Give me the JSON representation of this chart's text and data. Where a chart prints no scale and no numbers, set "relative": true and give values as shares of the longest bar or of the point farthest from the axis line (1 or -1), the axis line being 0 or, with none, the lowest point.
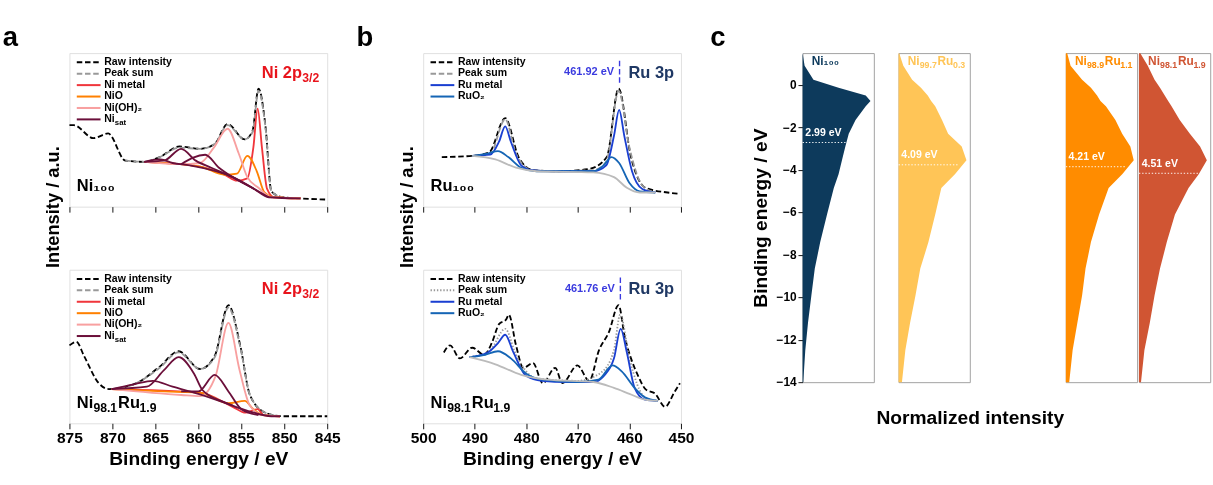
{
  "chart_data": [
    {
      "type": "line",
      "title": "a",
      "ylabel": "Intensity / a.u.",
      "annotations": [
        "Ni 2p$_{3/2}$",
        "Ni₁₀₀"
      ],
      "relative": true,
      "xlim": [
        875,
        845
      ],
      "xticks": [
        875,
        870,
        865,
        860,
        855,
        850,
        845
      ],
      "tick_labels": false,
      "legend": "top left",
      "series": [
        {
          "name": "Raw intensity",
          "color": "#000000",
          "line_style": "dashed",
          "x": [
            875,
            874.5,
            872.2,
            870.5,
            868.5,
            866.3,
            864.5,
            862.2,
            859.8,
            858.1,
            856.6,
            854.6,
            853.7,
            853.0,
            852.2,
            851.5,
            850.2,
            848.1,
            845
          ],
          "values": [
            0.69,
            0.69,
            0.58,
            0.62,
            0.39,
            0.38,
            0.42,
            0.51,
            0.49,
            0.53,
            0.7,
            0.57,
            0.64,
            1.0,
            0.69,
            0.13,
            0.08,
            0.07,
            0.06
          ]
        },
        {
          "name": "Peak sum",
          "color": "#999999",
          "line_style": "dashed",
          "x": [
            868.5,
            866.3,
            864.5,
            862.2,
            859.8,
            858.1,
            856.6,
            854.6,
            853.7,
            853.0,
            852.2,
            851.5,
            850.2,
            848.1
          ],
          "values": [
            0.39,
            0.38,
            0.42,
            0.5,
            0.49,
            0.53,
            0.69,
            0.57,
            0.63,
            0.98,
            0.68,
            0.13,
            0.08,
            0.07
          ]
        },
        {
          "name": "Ni metal",
          "color": "#f0363c",
          "x": [
            866.3,
            859.8,
            856.9,
            855.5,
            854.3,
            853.6,
            853.1,
            852.6,
            852.0,
            851.2,
            848.1
          ],
          "values": [
            0.38,
            0.34,
            0.27,
            0.22,
            0.24,
            0.5,
            0.83,
            0.5,
            0.15,
            0.08,
            0.07
          ]
        },
        {
          "name": "NiO",
          "color": "#ff8000",
          "x": [
            866.3,
            859.8,
            856.9,
            855.5,
            854.3,
            853.2,
            852.3,
            851.2,
            848.1
          ],
          "values": [
            0.38,
            0.34,
            0.27,
            0.28,
            0.43,
            0.3,
            0.12,
            0.08,
            0.07
          ]
        },
        {
          "name": "Ni(OH)₂",
          "color": "#f8a0a0",
          "x": [
            866.3,
            862,
            859.8,
            858.2,
            856.6,
            855.3,
            854.3,
            853.0,
            851.5,
            848.1
          ],
          "values": [
            0.38,
            0.36,
            0.37,
            0.5,
            0.66,
            0.45,
            0.25,
            0.16,
            0.08,
            0.07
          ]
        },
        {
          "name": "Ni$_{sat}$",
          "color": "#6b0f3a",
          "x": [
            866.3,
            864,
            862,
            860.3,
            858.5,
            856,
            853.5,
            851.8,
            848.1
          ],
          "values": [
            0.38,
            0.39,
            0.49,
            0.39,
            0.33,
            0.25,
            0.15,
            0.08,
            0.07
          ]
        },
        {
          "color": "#6b0f3a",
          "x": [
            862,
            859.2,
            857.6,
            856,
            853.5,
            851.8
          ],
          "values": [
            0.36,
            0.44,
            0.33,
            0.25,
            0.15,
            0.08
          ]
        },
        {
          "color": "#6b0f3a",
          "x": [
            866.3,
            864.4,
            863,
            861,
            856,
            853.5
          ],
          "values": [
            0.38,
            0.4,
            0.37,
            0.35,
            0.25,
            0.15
          ]
        }
      ]
    },
    {
      "type": "line",
      "xlabel": "Binding energy / eV",
      "annotations": [
        "Ni 2p$_{3/2}$",
        "Ni$_{98.1}$Ru$_{1.9}$"
      ],
      "relative": true,
      "xlim": [
        875,
        845
      ],
      "xticks": [
        875,
        870,
        865,
        860,
        855,
        850,
        845
      ],
      "tick_labels": "x",
      "legend": "top left",
      "series": [
        {
          "name": "Raw intensity",
          "color": "#000000",
          "line_style": "dashed",
          "x": [
            875,
            874.2,
            873.3,
            871.6,
            870.4,
            867.2,
            864.5,
            862.3,
            859.8,
            858.1,
            856.5,
            855.1,
            854.0,
            852.2,
            850.2,
            845
          ],
          "values": [
            0.66,
            0.69,
            0.57,
            0.34,
            0.29,
            0.34,
            0.48,
            0.61,
            0.46,
            0.57,
            1.0,
            0.65,
            0.24,
            0.09,
            0.06,
            0.06
          ]
        },
        {
          "name": "Peak sum",
          "color": "#999999",
          "line_style": "dashed",
          "x": [
            870.1,
            867.2,
            864.5,
            862.3,
            859.8,
            858.1,
            856.5,
            855.1,
            854.0,
            852.2,
            850.5
          ],
          "values": [
            0.29,
            0.34,
            0.47,
            0.6,
            0.46,
            0.56,
            0.98,
            0.64,
            0.24,
            0.09,
            0.06
          ]
        },
        {
          "name": "Ni metal",
          "color": "#f0363c",
          "x": [
            870.1,
            859.8,
            856,
            854.5,
            853.1,
            852.4,
            850.5
          ],
          "values": [
            0.29,
            0.26,
            0.14,
            0.09,
            0.12,
            0.07,
            0.06
          ]
        },
        {
          "name": "NiO",
          "color": "#ff8000",
          "x": [
            870.1,
            864,
            859.8,
            856.5,
            854.6,
            853.6,
            852.5,
            850.5
          ],
          "values": [
            0.29,
            0.27,
            0.26,
            0.17,
            0.19,
            0.12,
            0.07,
            0.06
          ]
        },
        {
          "name": "Ni(OH)₂",
          "color": "#f8a0a0",
          "x": [
            870.1,
            862,
            859.8,
            858,
            856.5,
            855.2,
            854,
            852.5,
            850.5
          ],
          "values": [
            0.29,
            0.24,
            0.23,
            0.4,
            0.85,
            0.45,
            0.15,
            0.07,
            0.06
          ]
        },
        {
          "name": "Ni$_{sat}$",
          "color": "#6b0f3a",
          "x": [
            870.1,
            866,
            864,
            862.3,
            860.5,
            859.5,
            857,
            854,
            851.5,
            850.5
          ],
          "values": [
            0.29,
            0.31,
            0.45,
            0.56,
            0.42,
            0.28,
            0.18,
            0.1,
            0.06,
            0.06
          ]
        },
        {
          "color": "#6b0f3a",
          "x": [
            862,
            860,
            858.1,
            856.5,
            855,
            853
          ],
          "values": [
            0.27,
            0.27,
            0.41,
            0.27,
            0.12,
            0.07
          ]
        },
        {
          "color": "#6b0f3a",
          "x": [
            870.1,
            867.5,
            865.3,
            863,
            860,
            856
          ],
          "values": [
            0.29,
            0.33,
            0.36,
            0.31,
            0.25,
            0.15
          ]
        }
      ]
    },
    {
      "type": "line",
      "title": "b",
      "ylabel": "Intensity / a.u.",
      "annotations": [
        "Ru 3p",
        "Ru₁₀₀"
      ],
      "relative": true,
      "xlim": [
        500,
        450
      ],
      "xticks": [
        500,
        490,
        480,
        470,
        460,
        450
      ],
      "tick_labels": false,
      "legend": "top left",
      "ref_lines": [
        {
          "axis": "x",
          "value": 461.92,
          "label": "461.92 eV",
          "color": "#3b3bdf",
          "line_style": "dashed"
        }
      ],
      "series": [
        {
          "name": "Raw intensity",
          "color": "#000000",
          "line_style": "dashed",
          "x": [
            496.4,
            490.5,
            487.2,
            484.1,
            481.5,
            478.7,
            473.9,
            467.8,
            464.4,
            462.1,
            459.7,
            456.9,
            452.6,
            450.5
          ],
          "values": [
            0.42,
            0.43,
            0.46,
            0.75,
            0.42,
            0.31,
            0.3,
            0.32,
            0.42,
            1.0,
            0.42,
            0.16,
            0.12,
            0.11
          ]
        },
        {
          "name": "Peak sum",
          "color": "#999999",
          "line_style": "dashed",
          "x": [
            490.5,
            487,
            484.1,
            482,
            479,
            474,
            467,
            464.5,
            462.1,
            460,
            457.5,
            455
          ],
          "values": [
            0.43,
            0.45,
            0.74,
            0.45,
            0.31,
            0.3,
            0.31,
            0.38,
            0.98,
            0.5,
            0.18,
            0.12
          ]
        },
        {
          "name": "Ru metal",
          "color": "#1a3fd1",
          "x": [
            490.5,
            487,
            485.3,
            484.1,
            483,
            481,
            479,
            474,
            467,
            464.5,
            463,
            462,
            461,
            459.5,
            457.5,
            455
          ],
          "values": [
            0.43,
            0.44,
            0.55,
            0.68,
            0.55,
            0.35,
            0.31,
            0.3,
            0.3,
            0.35,
            0.6,
            0.82,
            0.6,
            0.3,
            0.15,
            0.12
          ]
        },
        {
          "name": "RuO₂",
          "color": "#1565b5",
          "x": [
            490.5,
            487.5,
            485.5,
            483.5,
            481,
            478,
            467,
            465,
            463.5,
            462,
            460,
            458,
            455
          ],
          "values": [
            0.43,
            0.45,
            0.47,
            0.42,
            0.33,
            0.3,
            0.3,
            0.35,
            0.42,
            0.37,
            0.2,
            0.13,
            0.12
          ]
        },
        {
          "color": "#bbbbbb",
          "x": [
            490.5,
            486,
            482,
            478,
            467,
            463,
            460.5,
            458,
            455
          ],
          "values": [
            0.43,
            0.4,
            0.33,
            0.3,
            0.29,
            0.25,
            0.16,
            0.12,
            0.12
          ]
        }
      ]
    },
    {
      "type": "line",
      "xlabel": "Binding energy / eV",
      "annotations": [
        "Ru 3p",
        "Ni$_{98.1}$Ru$_{1.9}$"
      ],
      "relative": true,
      "xlim": [
        500,
        450
      ],
      "xticks": [
        500,
        490,
        480,
        470,
        460,
        450
      ],
      "tick_labels": "x",
      "legend": "top left",
      "ref_lines": [
        {
          "axis": "x",
          "value": 461.76,
          "label": "461.76 eV",
          "color": "#3b3bdf",
          "line_style": "dashed"
        }
      ],
      "series": [
        {
          "name": "Raw intensity",
          "color": "#000000",
          "line_style": "dashed",
          "x": [
            496.0,
            494.8,
            492.9,
            490.5,
            488.2,
            486.7,
            485.3,
            483.9,
            483.4,
            482,
            480.6,
            478.7,
            476.8,
            474.4,
            473,
            470.1,
            467.8,
            465.9,
            464,
            462.1,
            460.9,
            459.7,
            458.3,
            456.9,
            455,
            453.1,
            451.2,
            450.2
          ],
          "values": [
            0.6,
            0.66,
            0.55,
            0.64,
            0.58,
            0.68,
            0.84,
            0.88,
            0.92,
            0.66,
            0.47,
            0.51,
            0.34,
            0.47,
            0.34,
            0.49,
            0.36,
            0.62,
            0.77,
            1.0,
            0.73,
            0.55,
            0.4,
            0.29,
            0.25,
            0.14,
            0.27,
            0.34
          ]
        },
        {
          "name": "Peak sum",
          "color": "#999999",
          "line_style": "dotted",
          "x": [
            491,
            487,
            484.1,
            482,
            478,
            470,
            465.5,
            463,
            461.8,
            460,
            457,
            454.5
          ],
          "values": [
            0.56,
            0.62,
            0.8,
            0.58,
            0.38,
            0.36,
            0.43,
            0.62,
            0.92,
            0.55,
            0.22,
            0.19
          ]
        },
        {
          "name": "Ru metal",
          "color": "#1a3fd1",
          "x": [
            491,
            487.5,
            485.5,
            484.1,
            482.5,
            480,
            477,
            472,
            467,
            465,
            463,
            461.7,
            460.5,
            459,
            457,
            454.5
          ],
          "values": [
            0.56,
            0.6,
            0.68,
            0.75,
            0.6,
            0.4,
            0.36,
            0.35,
            0.35,
            0.4,
            0.55,
            0.8,
            0.6,
            0.3,
            0.2,
            0.19
          ]
        },
        {
          "name": "RuO₂",
          "color": "#1565b5",
          "x": [
            491,
            488,
            485.5,
            483,
            480,
            477,
            470,
            466,
            463.3,
            461.5,
            459,
            457,
            454.5
          ],
          "values": [
            0.56,
            0.58,
            0.61,
            0.55,
            0.42,
            0.37,
            0.35,
            0.37,
            0.49,
            0.44,
            0.3,
            0.22,
            0.19
          ]
        },
        {
          "color": "#bbbbbb",
          "x": [
            491,
            486,
            481,
            476,
            467,
            463,
            460,
            457,
            454.5
          ],
          "values": [
            0.56,
            0.5,
            0.41,
            0.37,
            0.35,
            0.3,
            0.25,
            0.2,
            0.19
          ]
        }
      ]
    },
    {
      "type": "area",
      "orientation": "horizontal",
      "title": "c",
      "ylabel": "Binding energy / eV",
      "relative": true,
      "ylim": [
        -14,
        1.5
      ],
      "yticks": [
        0,
        -2,
        -4,
        -6,
        -8,
        -10,
        -12,
        -14
      ],
      "tick_labels": "y",
      "ref_lines": [
        {
          "axis": "y",
          "value": -2.71,
          "label": "2.99 eV",
          "color": "#ffffff",
          "line_style": "dotted"
        }
      ],
      "series": [
        {
          "name": "Ni₁₀₀",
          "color": "#0d3a5c",
          "x": [
            1.5,
            0.9,
            0.25,
            -0.13,
            -0.5,
            -0.75,
            -1,
            -1.65,
            -2.3,
            -2.9,
            -3.55,
            -4.2,
            -4.85,
            -6.1,
            -7.4,
            -8.65,
            -9.9,
            -11.2,
            -12.5,
            -14
          ],
          "values": [
            0,
            0.03,
            0.16,
            0.53,
            0.93,
            1.0,
            0.93,
            0.78,
            0.68,
            0.63,
            0.58,
            0.53,
            0.46,
            0.36,
            0.26,
            0.18,
            0.13,
            0.08,
            0.04,
            0.01
          ]
        }
      ]
    },
    {
      "type": "area",
      "orientation": "horizontal",
      "xlabel": "Normalized intensity",
      "relative": true,
      "ylim": [
        -14,
        1.5
      ],
      "yticks": [
        0,
        -2,
        -4,
        -6,
        -8,
        -10,
        -12,
        -14
      ],
      "tick_labels": false,
      "ref_lines": [
        {
          "axis": "y",
          "value": -3.76,
          "label": "4.09 eV",
          "color": "#ffffff",
          "line_style": "dotted"
        }
      ],
      "series": [
        {
          "name": "Ni$_{99.7}$Ru$_{0.3}$",
          "color": "#ffc557",
          "x": [
            1.5,
            0.9,
            0.25,
            -0.13,
            -0.5,
            -0.75,
            -1,
            -1.65,
            -2.3,
            -2.9,
            -3.55,
            -4.2,
            -4.85,
            -6.1,
            -7.4,
            -8.65,
            -9.9,
            -11.2,
            -12.5,
            -14
          ],
          "values": [
            0.01,
            0.07,
            0.2,
            0.33,
            0.43,
            0.48,
            0.54,
            0.64,
            0.73,
            0.93,
            1.0,
            0.83,
            0.63,
            0.54,
            0.44,
            0.32,
            0.25,
            0.17,
            0.1,
            0.05
          ]
        }
      ]
    },
    {
      "type": "area",
      "orientation": "horizontal",
      "relative": true,
      "ylim": [
        -14,
        1.5
      ],
      "yticks": [
        0,
        -2,
        -4,
        -6,
        -8,
        -10,
        -12,
        -14
      ],
      "tick_labels": false,
      "ref_lines": [
        {
          "axis": "y",
          "value": -3.85,
          "label": "4.21 eV",
          "color": "#ffffff",
          "line_style": "dotted"
        }
      ],
      "series": [
        {
          "name": "Ni$_{98.9}$Ru$_{1.1}$",
          "color": "#ff8c00",
          "x": [
            1.5,
            0.9,
            0.25,
            -0.13,
            -0.5,
            -0.75,
            -1,
            -1.65,
            -2.3,
            -2.9,
            -3.55,
            -4.2,
            -4.85,
            -6.1,
            -7.4,
            -8.65,
            -9.9,
            -11.2,
            -12.5,
            -14
          ],
          "values": [
            0.02,
            0.07,
            0.24,
            0.37,
            0.46,
            0.51,
            0.59,
            0.73,
            0.83,
            0.95,
            1.0,
            0.83,
            0.63,
            0.49,
            0.37,
            0.29,
            0.24,
            0.17,
            0.1,
            0.05
          ]
        }
      ]
    },
    {
      "type": "area",
      "orientation": "horizontal",
      "relative": true,
      "ylim": [
        -14,
        1.5
      ],
      "yticks": [
        0,
        -2,
        -4,
        -6,
        -8,
        -10,
        -12,
        -14
      ],
      "tick_labels": false,
      "ref_lines": [
        {
          "axis": "y",
          "value": -4.16,
          "label": "4.51 eV",
          "color": "#ffffff",
          "line_style": "dotted"
        }
      ],
      "series": [
        {
          "name": "Ni$_{98.1}$Ru$_{1.9}$",
          "color": "#d05533",
          "x": [
            1.5,
            0.9,
            0.25,
            -0.13,
            -0.5,
            -0.75,
            -1,
            -1.65,
            -2.3,
            -2.9,
            -3.55,
            -4.2,
            -4.85,
            -6.1,
            -7.4,
            -8.65,
            -9.9,
            -11.2,
            -12.5,
            -14
          ],
          "values": [
            0.02,
            0.13,
            0.23,
            0.31,
            0.38,
            0.43,
            0.48,
            0.6,
            0.75,
            0.9,
            1.0,
            0.88,
            0.73,
            0.53,
            0.41,
            0.31,
            0.23,
            0.16,
            0.08,
            0.03
          ]
        }
      ]
    }
  ]
}
